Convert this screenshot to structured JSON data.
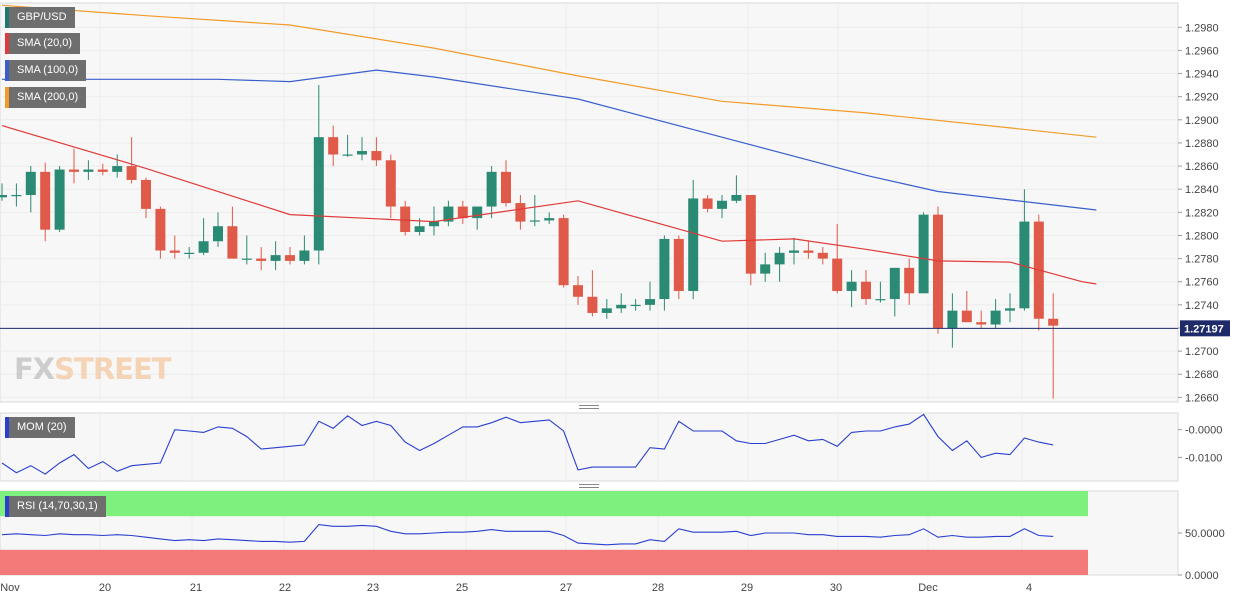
{
  "chart_data": {
    "type": "candlestick",
    "symbol": "GBP/USD",
    "last_price": "1.27197",
    "indicators": [
      {
        "name": "SMA (20,0)",
        "color": "#e03a3a"
      },
      {
        "name": "SMA (100,0)",
        "color": "#3a5fcd"
      },
      {
        "name": "SMA (200,0)",
        "color": "#f29b2a"
      }
    ],
    "price_axis": {
      "ticks": [
        "1.2660",
        "1.2680",
        "1.2700",
        "1.2720",
        "1.2740",
        "1.2760",
        "1.2780",
        "1.2800",
        "1.2820",
        "1.2840",
        "1.2860",
        "1.2880",
        "1.2900",
        "1.2920",
        "1.2940",
        "1.2960",
        "1.2980"
      ],
      "range": [
        1.2656,
        1.3001
      ]
    },
    "x_labels": [
      "Nov",
      "20",
      "21",
      "22",
      "23",
      "25",
      "27",
      "28",
      "29",
      "30",
      "Dec",
      "4"
    ],
    "candles": [
      [
        1.2833,
        1.2845,
        1.283,
        1.2835
      ],
      [
        1.2835,
        1.2845,
        1.2825,
        1.2835
      ],
      [
        1.2835,
        1.286,
        1.282,
        1.2855
      ],
      [
        1.2855,
        1.2863,
        1.2795,
        1.2805
      ],
      [
        1.2805,
        1.286,
        1.2803,
        1.2857
      ],
      [
        1.2857,
        1.2875,
        1.2845,
        1.2855
      ],
      [
        1.2855,
        1.2865,
        1.2848,
        1.2857
      ],
      [
        1.2857,
        1.2862,
        1.2852,
        1.2855
      ],
      [
        1.2855,
        1.287,
        1.285,
        1.286
      ],
      [
        1.286,
        1.2885,
        1.2845,
        1.2848
      ],
      [
        1.2848,
        1.285,
        1.2815,
        1.2823
      ],
      [
        1.2823,
        1.2825,
        1.278,
        1.2787
      ],
      [
        1.2787,
        1.28,
        1.278,
        1.2785
      ],
      [
        1.2785,
        1.279,
        1.278,
        1.2785
      ],
      [
        1.2785,
        1.2815,
        1.2783,
        1.2795
      ],
      [
        1.2795,
        1.282,
        1.279,
        1.2808
      ],
      [
        1.2808,
        1.2825,
        1.278,
        1.278
      ],
      [
        1.278,
        1.28,
        1.2775,
        1.278
      ],
      [
        1.278,
        1.279,
        1.277,
        1.2778
      ],
      [
        1.2778,
        1.2795,
        1.277,
        1.2783
      ],
      [
        1.2783,
        1.279,
        1.2775,
        1.2778
      ],
      [
        1.2778,
        1.28,
        1.2775,
        1.2787
      ],
      [
        1.2787,
        1.293,
        1.2775,
        1.2885
      ],
      [
        1.2885,
        1.2895,
        1.286,
        1.287
      ],
      [
        1.287,
        1.2887,
        1.2868,
        1.287
      ],
      [
        1.287,
        1.2885,
        1.2865,
        1.2873
      ],
      [
        1.2873,
        1.2885,
        1.286,
        1.2865
      ],
      [
        1.2865,
        1.287,
        1.2815,
        1.2825
      ],
      [
        1.2825,
        1.283,
        1.28,
        1.2803
      ],
      [
        1.2803,
        1.2815,
        1.28,
        1.2808
      ],
      [
        1.2808,
        1.2825,
        1.28,
        1.2812
      ],
      [
        1.2812,
        1.283,
        1.2808,
        1.2825
      ],
      [
        1.2825,
        1.283,
        1.281,
        1.2815
      ],
      [
        1.2815,
        1.2825,
        1.2805,
        1.2825
      ],
      [
        1.2825,
        1.286,
        1.2815,
        1.2855
      ],
      [
        1.2855,
        1.2865,
        1.2825,
        1.2828
      ],
      [
        1.2828,
        1.2835,
        1.2805,
        1.2812
      ],
      [
        1.2812,
        1.2835,
        1.2808,
        1.2813
      ],
      [
        1.2813,
        1.282,
        1.281,
        1.2815
      ],
      [
        1.2815,
        1.2818,
        1.2755,
        1.2757
      ],
      [
        1.2757,
        1.2765,
        1.274,
        1.2747
      ],
      [
        1.2747,
        1.277,
        1.273,
        1.2733
      ],
      [
        1.2733,
        1.2745,
        1.2728,
        1.2737
      ],
      [
        1.2737,
        1.275,
        1.2733,
        1.274
      ],
      [
        1.274,
        1.2745,
        1.2735,
        1.274
      ],
      [
        1.274,
        1.276,
        1.2735,
        1.2745
      ],
      [
        1.2745,
        1.28,
        1.2735,
        1.2797
      ],
      [
        1.2797,
        1.28,
        1.2745,
        1.2752
      ],
      [
        1.2752,
        1.2848,
        1.2745,
        1.2832
      ],
      [
        1.2832,
        1.2835,
        1.282,
        1.2823
      ],
      [
        1.2823,
        1.2835,
        1.2815,
        1.283
      ],
      [
        1.283,
        1.2852,
        1.2828,
        1.2835
      ],
      [
        1.2835,
        1.2835,
        1.2757,
        1.2767
      ],
      [
        1.2767,
        1.2785,
        1.276,
        1.2775
      ],
      [
        1.2775,
        1.279,
        1.276,
        1.2785
      ],
      [
        1.2785,
        1.2798,
        1.2775,
        1.2787
      ],
      [
        1.2787,
        1.2795,
        1.278,
        1.2785
      ],
      [
        1.2785,
        1.279,
        1.2775,
        1.278
      ],
      [
        1.278,
        1.281,
        1.275,
        1.2752
      ],
      [
        1.2752,
        1.277,
        1.2738,
        1.276
      ],
      [
        1.276,
        1.277,
        1.274,
        1.2745
      ],
      [
        1.2745,
        1.276,
        1.2742,
        1.2745
      ],
      [
        1.2745,
        1.277,
        1.273,
        1.2772
      ],
      [
        1.2772,
        1.278,
        1.274,
        1.275
      ],
      [
        1.275,
        1.282,
        1.275,
        1.2818
      ],
      [
        1.2818,
        1.2825,
        1.2715,
        1.272
      ],
      [
        1.272,
        1.275,
        1.2703,
        1.2735
      ],
      [
        1.2735,
        1.2752,
        1.2725,
        1.2725
      ],
      [
        1.2725,
        1.2735,
        1.272,
        1.2723
      ],
      [
        1.2723,
        1.2745,
        1.272,
        1.2735
      ],
      [
        1.2735,
        1.275,
        1.2725,
        1.2737
      ],
      [
        1.2737,
        1.284,
        1.2735,
        1.2812
      ],
      [
        1.2812,
        1.2818,
        1.2718,
        1.2728
      ],
      [
        1.2728,
        1.275,
        1.2659,
        1.2722
      ]
    ],
    "sma20": [
      [
        0,
        1.2895
      ],
      [
        10,
        1.2858
      ],
      [
        20,
        1.2818
      ],
      [
        30,
        1.2812
      ],
      [
        40,
        1.283
      ],
      [
        50,
        1.2795
      ],
      [
        55,
        1.2797
      ],
      [
        60,
        1.2788
      ],
      [
        65,
        1.2778
      ],
      [
        70,
        1.2777
      ],
      [
        75,
        1.276
      ],
      [
        76,
        1.2758
      ]
    ],
    "sma100": [
      [
        0,
        1.2935
      ],
      [
        10,
        1.2935
      ],
      [
        15,
        1.2935
      ],
      [
        20,
        1.2933
      ],
      [
        26,
        1.2943
      ],
      [
        30,
        1.2937
      ],
      [
        40,
        1.2918
      ],
      [
        50,
        1.2885
      ],
      [
        60,
        1.2852
      ],
      [
        65,
        1.2838
      ],
      [
        76,
        1.2822
      ]
    ],
    "sma200": [
      [
        0,
        1.2999
      ],
      [
        10,
        1.299
      ],
      [
        20,
        1.2982
      ],
      [
        30,
        1.2962
      ],
      [
        40,
        1.2938
      ],
      [
        50,
        1.2916
      ],
      [
        60,
        1.2906
      ],
      [
        70,
        1.2893
      ],
      [
        76,
        1.2885
      ]
    ],
    "mom": {
      "label": "MOM (20)",
      "ticks": [
        "-0.0000",
        "-0.0100"
      ],
      "range": [
        -0.0185,
        0.006
      ],
      "values": [
        -0.012,
        -0.0155,
        -0.013,
        -0.016,
        -0.012,
        -0.009,
        -0.014,
        -0.0115,
        -0.015,
        -0.013,
        -0.0125,
        -0.012,
        0.0,
        -0.0005,
        -0.001,
        0.001,
        0.0005,
        -0.0025,
        -0.007,
        -0.0065,
        -0.006,
        -0.0055,
        0.003,
        0.0005,
        0.005,
        0.0015,
        0.003,
        0.0015,
        -0.0045,
        -0.0075,
        -0.005,
        -0.002,
        0.001,
        0.001,
        0.0025,
        0.0045,
        0.0025,
        0.003,
        0.0035,
        -0.0005,
        -0.0145,
        -0.0135,
        -0.0135,
        -0.0135,
        -0.0135,
        -0.0065,
        -0.007,
        0.003,
        -0.0005,
        -0.0005,
        -0.0005,
        -0.004,
        -0.005,
        -0.005,
        -0.0035,
        -0.002,
        -0.004,
        -0.0035,
        -0.006,
        -0.001,
        -0.0005,
        -0.0005,
        0.001,
        0.002,
        0.0055,
        -0.0025,
        -0.0075,
        -0.004,
        -0.01,
        -0.0085,
        -0.009,
        -0.003,
        -0.0045,
        -0.0055
      ],
      "color": "#2a3fcf"
    },
    "rsi": {
      "label": "RSI (14,70,30,1)",
      "ticks": [
        "50.0000",
        "0.0000"
      ],
      "range": [
        0,
        100
      ],
      "overbought": 70,
      "oversold": 30,
      "values": [
        48,
        49,
        48,
        47,
        49,
        48,
        48,
        47,
        48,
        47,
        45,
        43,
        41,
        42,
        41,
        43,
        42,
        41,
        40,
        40,
        39,
        40,
        60,
        58,
        58,
        59,
        58,
        52,
        49,
        49,
        50,
        51,
        51,
        52,
        54,
        52,
        52,
        52,
        52,
        47,
        38,
        37,
        36,
        37,
        37,
        42,
        40,
        55,
        51,
        51,
        51,
        52,
        47,
        50,
        50,
        50,
        48,
        48,
        46,
        46,
        46,
        45,
        47,
        48,
        55,
        45,
        47,
        45,
        45,
        46,
        46,
        55,
        47,
        46
      ],
      "color": "#2a3fcf"
    }
  },
  "watermark": {
    "fx": "FX",
    "street": "STREET"
  }
}
